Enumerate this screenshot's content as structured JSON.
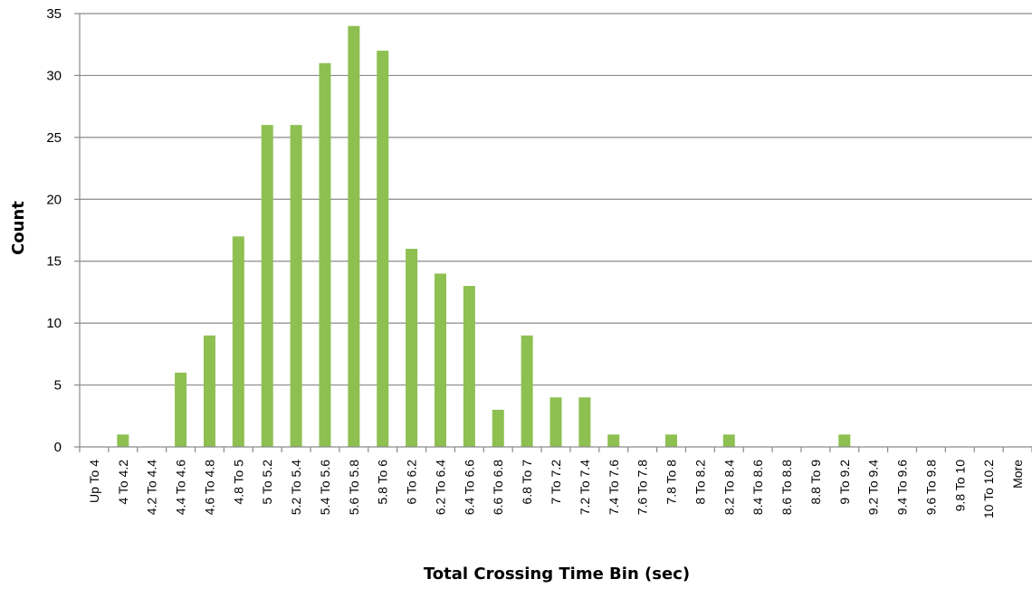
{
  "chart_data": {
    "type": "bar",
    "title": "",
    "xlabel": "Total Crossing Time Bin (sec)",
    "ylabel": "Count",
    "ylim": [
      0,
      35
    ],
    "yticks": [
      0,
      5,
      10,
      15,
      20,
      25,
      30,
      35
    ],
    "grid": true,
    "bar_color": "#8DC050",
    "categories": [
      "Up To 4",
      "4 To 4.2",
      "4.2 To 4.4",
      "4.4 To 4.6",
      "4.6 To 4.8",
      "4.8 To 5",
      "5 To 5.2",
      "5.2 To 5.4",
      "5.4 To 5.6",
      "5.6 To 5.8",
      "5.8 To 6",
      "6 To 6.2",
      "6.2 To 6.4",
      "6.4 To 6.6",
      "6.6 To 6.8",
      "6.8 To 7",
      "7 To 7.2",
      "7.2 To 7.4",
      "7.4 To 7.6",
      "7.6 To 7.8",
      "7.8 To 8",
      "8 To 8.2",
      "8.2 To 8.4",
      "8.4 To 8.6",
      "8.6 To 8.8",
      "8.8 To 9",
      "9 To 9.2",
      "9.2 To 9.4",
      "9.4 To 9.6",
      "9.6 To 9.8",
      "9.8 To 10",
      "10 To 10.2",
      "More"
    ],
    "values": [
      0,
      1,
      0,
      6,
      9,
      17,
      26,
      26,
      31,
      34,
      32,
      16,
      14,
      13,
      3,
      9,
      4,
      4,
      1,
      0,
      1,
      0,
      1,
      0,
      0,
      0,
      1,
      0,
      0,
      0,
      0,
      0,
      0
    ]
  }
}
